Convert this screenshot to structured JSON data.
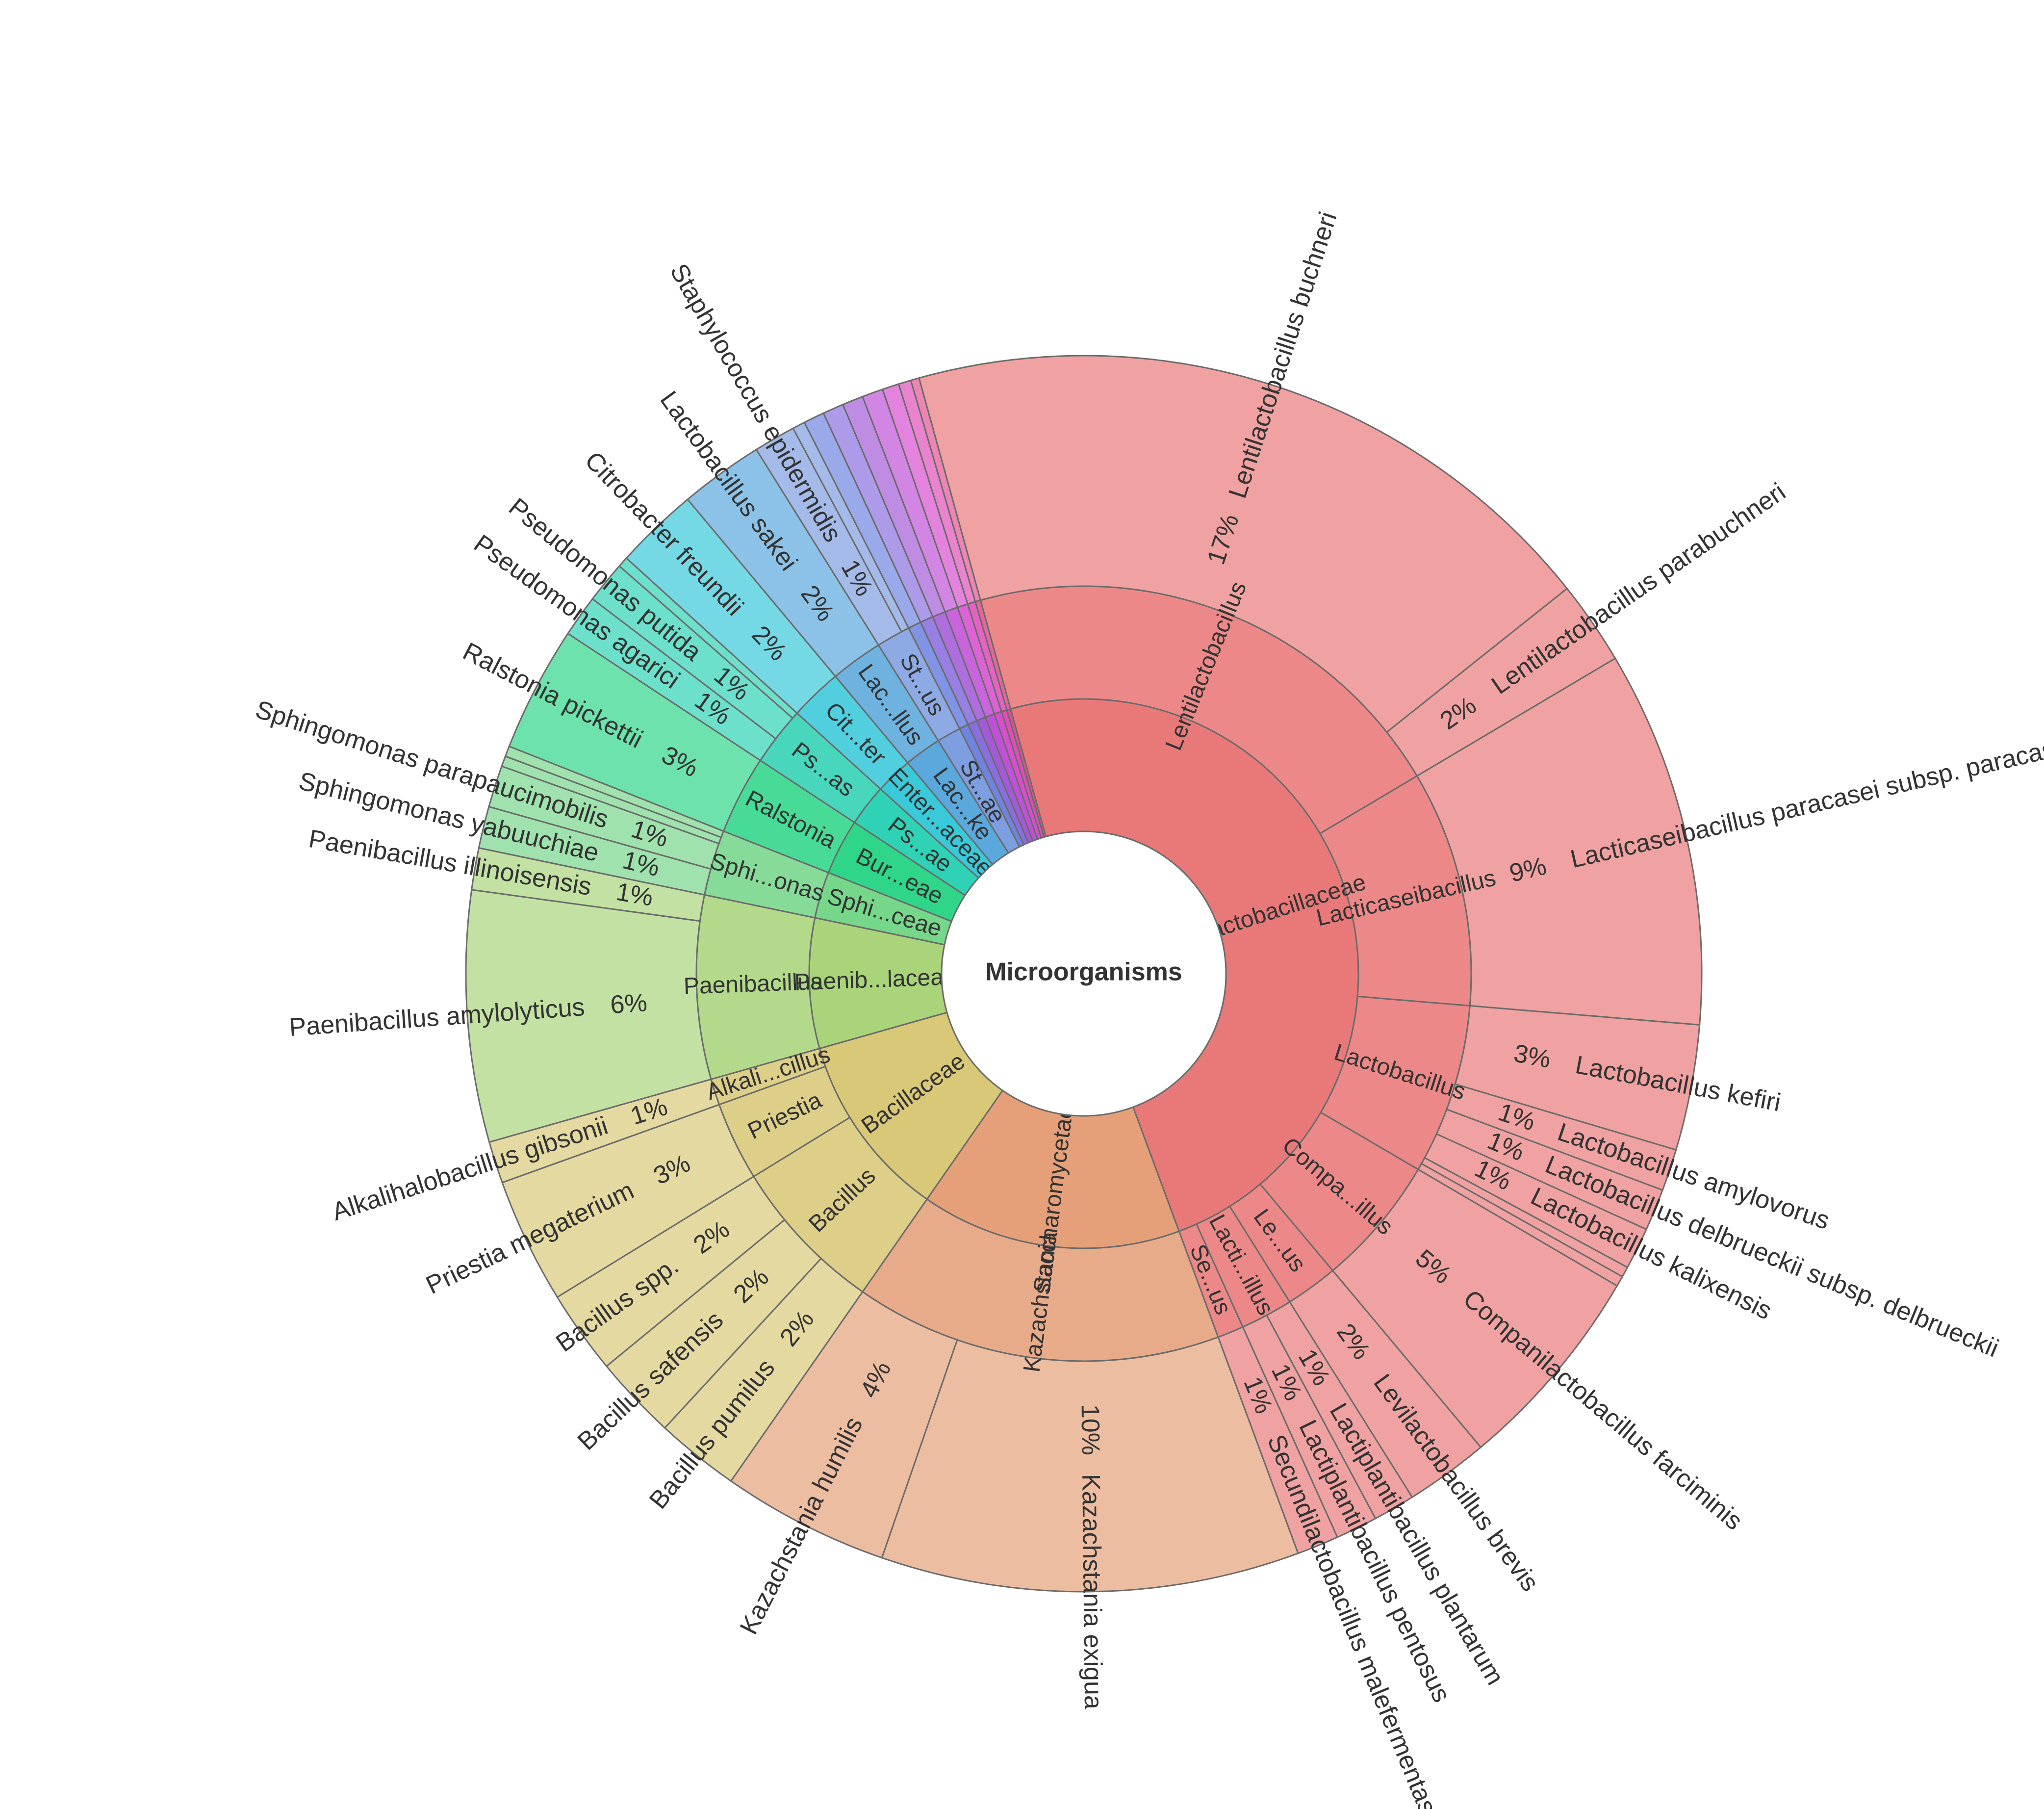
{
  "chart_data": {
    "type": "sunburst",
    "title": "",
    "center_label": "Microorganisms",
    "leaf_unit": "%",
    "nodes": [
      {
        "name": "Lactobacillaceae",
        "color": "#e97978",
        "children": [
          {
            "name": "Lentilactobacillus",
            "children": [
              {
                "name": "Lentilactobacillus buchneri",
                "value": 17
              },
              {
                "name": "Lentilactobacillus parabuchneri",
                "value": 2
              }
            ]
          },
          {
            "name": "Lacticaseibacillus",
            "children": [
              {
                "name": "Lacticaseibacillus paracasei subsp. paracasei",
                "value": 9
              }
            ]
          },
          {
            "name": "Lactobacillus",
            "children": [
              {
                "name": "Lactobacillus kefiri",
                "value": 3
              },
              {
                "name": "Lactobacillus amylovorus",
                "value": 1
              },
              {
                "name": "Lactobacillus delbrueckii subsp. delbrueckii",
                "value": 1
              },
              {
                "name": "Lactobacillus kalixensis",
                "value": 1
              },
              {
                "name": "",
                "value": 0.25
              },
              {
                "name": "",
                "value": 0.25
              }
            ]
          },
          {
            "name": "Compa...illus",
            "children": [
              {
                "name": "Companilactobacillus farciminis",
                "value": 5
              }
            ]
          },
          {
            "name": "Le...us",
            "children": [
              {
                "name": "Levilactobacillus brevis",
                "value": 2
              }
            ]
          },
          {
            "name": "Lacti...illus",
            "children": [
              {
                "name": "Lactiplantibacillus plantarum",
                "value": 1
              },
              {
                "name": "Lactiplantibacillus pentosus",
                "value": 1
              }
            ]
          },
          {
            "name": "Se...us",
            "children": [
              {
                "name": "Secundilactobacillus malefermentas",
                "value": 1
              }
            ]
          }
        ]
      },
      {
        "name": "Saccharomycetaceae",
        "color": "#e5a07a",
        "children": [
          {
            "name": "Kazachstania",
            "children": [
              {
                "name": "Kazachstania exigua",
                "value": 10
              },
              {
                "name": "Kazachstania humilis",
                "value": 4
              }
            ]
          }
        ]
      },
      {
        "name": "Bacillaceae",
        "color": "#d8c878",
        "children": [
          {
            "name": "Bacillus",
            "children": [
              {
                "name": "Bacillus pumilus",
                "value": 2
              },
              {
                "name": "Bacillus safensis",
                "value": 2
              },
              {
                "name": "Bacillus spp.",
                "value": 2
              }
            ]
          },
          {
            "name": "Priestia",
            "children": [
              {
                "name": "Priestia megaterium",
                "value": 3
              }
            ]
          },
          {
            "name": "Alkali...cillus",
            "children": [
              {
                "name": "Alkalihalobacillus gibsonii",
                "value": 1
              }
            ]
          }
        ]
      },
      {
        "name": "Paenib...laceae",
        "color": "#a9d47a",
        "children": [
          {
            "name": "Paenibacillus",
            "children": [
              {
                "name": "Paenibacillus amylolyticus",
                "value": 6
              },
              {
                "name": "Paenibacillus illinoisensis",
                "value": 1
              }
            ]
          }
        ]
      },
      {
        "name": "Sphi...ceae",
        "color": "#76d68a",
        "children": [
          {
            "name": "Sphi...onas",
            "children": [
              {
                "name": "Sphingomonas yabuuchiae",
                "value": 1
              },
              {
                "name": "Sphingomonas parapaucimobilis",
                "value": 1
              },
              {
                "name": "",
                "value": 0.25
              },
              {
                "name": "",
                "value": 0.25
              }
            ]
          }
        ]
      },
      {
        "name": "Bur...eae",
        "color": "#2fd68a",
        "children": [
          {
            "name": "Ralstonia",
            "children": [
              {
                "name": "Ralstonia pickettii",
                "value": 3
              }
            ]
          }
        ]
      },
      {
        "name": "Ps...ae",
        "color": "#2fd2b4",
        "children": [
          {
            "name": "Ps...as",
            "children": [
              {
                "name": "Pseudomonas agarici",
                "value": 1
              },
              {
                "name": "Pseudomonas putida",
                "value": 1
              },
              {
                "name": "",
                "value": 0.25
              }
            ]
          }
        ]
      },
      {
        "name": "Enter...aceae",
        "color": "#39c9d9",
        "children": [
          {
            "name": "Cit...ter",
            "children": [
              {
                "name": "Citrobacter freundii",
                "value": 2
              }
            ]
          }
        ]
      },
      {
        "name": "Lac...ke",
        "color": "#5aa8dc",
        "children": [
          {
            "name": "Lac...llus",
            "children": [
              {
                "name": "Lactobacillus sakei",
                "value": 2
              }
            ]
          }
        ]
      },
      {
        "name": "St...ae",
        "color": "#7d9ee0",
        "children": [
          {
            "name": "St...us",
            "children": [
              {
                "name": "Staphylococcus epidermidis",
                "value": 1
              },
              {
                "name": "",
                "value": 0.3
              }
            ]
          }
        ]
      },
      {
        "name": "",
        "color": "#6f84e0",
        "children": [
          {
            "name": "",
            "children": [
              {
                "name": "",
                "value": 0.5
              }
            ]
          }
        ]
      },
      {
        "name": "",
        "color": "#8a6ee0",
        "children": [
          {
            "name": "",
            "children": [
              {
                "name": "",
                "value": 0.5
              }
            ]
          }
        ]
      },
      {
        "name": "",
        "color": "#a45ad8",
        "children": [
          {
            "name": "",
            "children": [
              {
                "name": "",
                "value": 0.5
              }
            ]
          }
        ]
      },
      {
        "name": "",
        "color": "#c050d8",
        "children": [
          {
            "name": "",
            "children": [
              {
                "name": "",
                "value": 0.5
              }
            ]
          }
        ]
      },
      {
        "name": "",
        "color": "#d84ecf",
        "children": [
          {
            "name": "",
            "children": [
              {
                "name": "",
                "value": 0.4
              }
            ]
          }
        ]
      },
      {
        "name": "",
        "color": "#e04eb8",
        "children": [
          {
            "name": "",
            "children": [
              {
                "name": "",
                "value": 0.3
              }
            ]
          }
        ]
      },
      {
        "name": "",
        "color": "#e2508f",
        "children": [
          {
            "name": "",
            "children": [
              {
                "name": "",
                "value": 0.2
              }
            ]
          }
        ]
      }
    ]
  }
}
